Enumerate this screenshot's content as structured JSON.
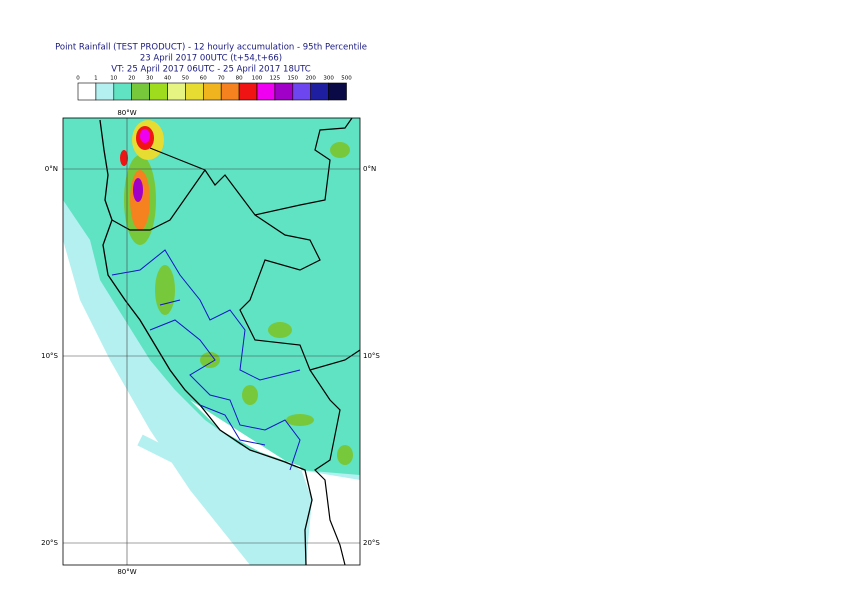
{
  "header": {
    "title": "Point Rainfall (TEST PRODUCT) - 12 hourly accumulation - 95th Percentile",
    "subtitle": "23 April 2017 00UTC (t+54,t+66)",
    "validity": "VT: 25 April 2017 06UTC - 25 April 2017 18UTC"
  },
  "legend": {
    "ticks": [
      0,
      1,
      10,
      20,
      30,
      40,
      50,
      60,
      70,
      80,
      100,
      125,
      150,
      200,
      300,
      500
    ],
    "colors": [
      "#ffffff",
      "#b4f0f0",
      "#5fe3c3",
      "#78c83c",
      "#a0dc1e",
      "#e6f582",
      "#e6dc32",
      "#f0b41e",
      "#f5821e",
      "#f01414",
      "#f000f0",
      "#a000c8",
      "#6e46f0",
      "#1e1ea0",
      "#0a0a46"
    ]
  },
  "map": {
    "lon_labels": [
      "80°W",
      "80°W"
    ],
    "lat_labels_left": [
      "0°N",
      "10°S",
      "20°S"
    ],
    "lat_labels_right": [
      "0°N",
      "10°S",
      "20°S"
    ]
  }
}
